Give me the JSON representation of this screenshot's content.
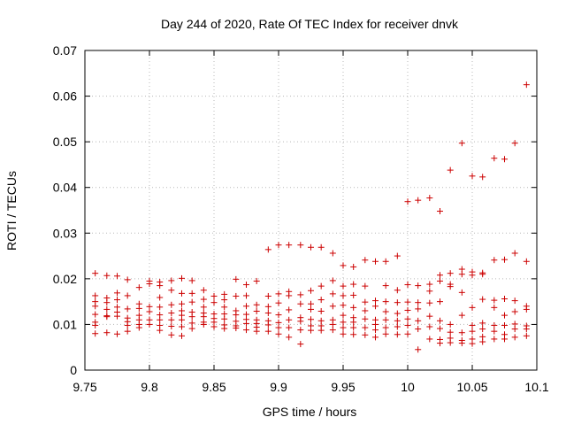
{
  "chart_data": {
    "type": "scatter",
    "title": "Day 244 of 2020, Rate Of TEC Index for receiver dnvk",
    "xlabel": "GPS time / hours",
    "ylabel": "ROTI / TECUs",
    "xlim": [
      9.75,
      10.1
    ],
    "ylim": [
      0,
      0.07
    ],
    "x_ticks": [
      9.75,
      9.8,
      9.85,
      9.9,
      9.95,
      10.0,
      10.05,
      10.1
    ],
    "x_tick_labels": [
      "9.75",
      "9.8",
      "9.85",
      "9.9",
      "9.95",
      "10",
      "10.05",
      "10.1"
    ],
    "y_ticks": [
      0,
      0.01,
      0.02,
      0.03,
      0.04,
      0.05,
      0.06,
      0.07
    ],
    "y_tick_labels": [
      "0",
      "0.01",
      "0.02",
      "0.03",
      "0.04",
      "0.05",
      "0.06",
      "0.07"
    ],
    "grid": true,
    "marker": "+",
    "marker_color": "#cc0000",
    "series": [
      {
        "name": "ROTI",
        "points": [
          [
            9.758,
            0.0212
          ],
          [
            9.758,
            0.0163
          ],
          [
            9.758,
            0.015
          ],
          [
            9.758,
            0.014
          ],
          [
            9.758,
            0.0122
          ],
          [
            9.758,
            0.0105
          ],
          [
            9.758,
            0.0098
          ],
          [
            9.758,
            0.008
          ],
          [
            9.767,
            0.0207
          ],
          [
            9.767,
            0.0158
          ],
          [
            9.767,
            0.0148
          ],
          [
            9.767,
            0.0133
          ],
          [
            9.767,
            0.0119
          ],
          [
            9.767,
            0.0117
          ],
          [
            9.767,
            0.0082
          ],
          [
            9.775,
            0.0206
          ],
          [
            9.775,
            0.0169
          ],
          [
            9.775,
            0.0154
          ],
          [
            9.775,
            0.0138
          ],
          [
            9.775,
            0.0127
          ],
          [
            9.775,
            0.0118
          ],
          [
            9.775,
            0.0079
          ],
          [
            9.783,
            0.0198
          ],
          [
            9.783,
            0.0163
          ],
          [
            9.783,
            0.0134
          ],
          [
            9.783,
            0.0114
          ],
          [
            9.783,
            0.0106
          ],
          [
            9.783,
            0.0098
          ],
          [
            9.783,
            0.0085
          ],
          [
            9.792,
            0.0181
          ],
          [
            9.792,
            0.0145
          ],
          [
            9.792,
            0.0135
          ],
          [
            9.792,
            0.012
          ],
          [
            9.792,
            0.011
          ],
          [
            9.792,
            0.01
          ],
          [
            9.792,
            0.0093
          ],
          [
            9.8,
            0.0195
          ],
          [
            9.8,
            0.0189
          ],
          [
            9.8,
            0.0139
          ],
          [
            9.8,
            0.0128
          ],
          [
            9.8,
            0.011
          ],
          [
            9.8,
            0.01
          ],
          [
            9.808,
            0.0193
          ],
          [
            9.808,
            0.0185
          ],
          [
            9.808,
            0.0159
          ],
          [
            9.808,
            0.0138
          ],
          [
            9.808,
            0.0121
          ],
          [
            9.808,
            0.011
          ],
          [
            9.808,
            0.0098
          ],
          [
            9.808,
            0.0087
          ],
          [
            9.817,
            0.0196
          ],
          [
            9.817,
            0.0175
          ],
          [
            9.817,
            0.0143
          ],
          [
            9.817,
            0.0125
          ],
          [
            9.817,
            0.011
          ],
          [
            9.817,
            0.0096
          ],
          [
            9.817,
            0.0077
          ],
          [
            9.825,
            0.0201
          ],
          [
            9.825,
            0.0168
          ],
          [
            9.825,
            0.0145
          ],
          [
            9.825,
            0.013
          ],
          [
            9.825,
            0.012
          ],
          [
            9.825,
            0.011
          ],
          [
            9.825,
            0.0095
          ],
          [
            9.825,
            0.0075
          ],
          [
            9.833,
            0.0196
          ],
          [
            9.833,
            0.0168
          ],
          [
            9.833,
            0.0149
          ],
          [
            9.833,
            0.0127
          ],
          [
            9.833,
            0.0117
          ],
          [
            9.833,
            0.0103
          ],
          [
            9.833,
            0.0091
          ],
          [
            9.842,
            0.0175
          ],
          [
            9.842,
            0.0155
          ],
          [
            9.842,
            0.0138
          ],
          [
            9.842,
            0.0125
          ],
          [
            9.842,
            0.0117
          ],
          [
            9.842,
            0.0105
          ],
          [
            9.842,
            0.01
          ],
          [
            9.85,
            0.0162
          ],
          [
            9.85,
            0.0148
          ],
          [
            9.85,
            0.0123
          ],
          [
            9.85,
            0.0113
          ],
          [
            9.85,
            0.0105
          ],
          [
            9.85,
            0.0095
          ],
          [
            9.858,
            0.0166
          ],
          [
            9.858,
            0.0154
          ],
          [
            9.858,
            0.0138
          ],
          [
            9.858,
            0.0123
          ],
          [
            9.858,
            0.0112
          ],
          [
            9.858,
            0.0099
          ],
          [
            9.858,
            0.0091
          ],
          [
            9.867,
            0.0199
          ],
          [
            9.867,
            0.0162
          ],
          [
            9.867,
            0.013
          ],
          [
            9.867,
            0.0121
          ],
          [
            9.867,
            0.0107
          ],
          [
            9.867,
            0.0097
          ],
          [
            9.867,
            0.0092
          ],
          [
            9.875,
            0.0187
          ],
          [
            9.875,
            0.0163
          ],
          [
            9.875,
            0.014
          ],
          [
            9.875,
            0.0122
          ],
          [
            9.875,
            0.0111
          ],
          [
            9.875,
            0.0102
          ],
          [
            9.875,
            0.0088
          ],
          [
            9.883,
            0.0195
          ],
          [
            9.883,
            0.0143
          ],
          [
            9.883,
            0.0129
          ],
          [
            9.883,
            0.011
          ],
          [
            9.883,
            0.0102
          ],
          [
            9.883,
            0.0094
          ],
          [
            9.883,
            0.0085
          ],
          [
            9.892,
            0.0264
          ],
          [
            9.892,
            0.0162
          ],
          [
            9.892,
            0.0139
          ],
          [
            9.892,
            0.0125
          ],
          [
            9.892,
            0.0108
          ],
          [
            9.892,
            0.0099
          ],
          [
            9.892,
            0.0085
          ],
          [
            9.9,
            0.0274
          ],
          [
            9.9,
            0.0167
          ],
          [
            9.9,
            0.0147
          ],
          [
            9.9,
            0.0121
          ],
          [
            9.9,
            0.0104
          ],
          [
            9.9,
            0.0093
          ],
          [
            9.9,
            0.0079
          ],
          [
            9.908,
            0.0274
          ],
          [
            9.908,
            0.0172
          ],
          [
            9.908,
            0.0163
          ],
          [
            9.908,
            0.0132
          ],
          [
            9.908,
            0.011
          ],
          [
            9.908,
            0.0093
          ],
          [
            9.908,
            0.0072
          ],
          [
            9.917,
            0.0274
          ],
          [
            9.917,
            0.0165
          ],
          [
            9.917,
            0.0145
          ],
          [
            9.917,
            0.0115
          ],
          [
            9.917,
            0.0107
          ],
          [
            9.917,
            0.0088
          ],
          [
            9.917,
            0.0057
          ],
          [
            9.925,
            0.0269
          ],
          [
            9.925,
            0.0174
          ],
          [
            9.925,
            0.0145
          ],
          [
            9.925,
            0.0133
          ],
          [
            9.925,
            0.0111
          ],
          [
            9.925,
            0.0097
          ],
          [
            9.925,
            0.0087
          ],
          [
            9.933,
            0.0269
          ],
          [
            9.933,
            0.0184
          ],
          [
            9.933,
            0.0154
          ],
          [
            9.933,
            0.0129
          ],
          [
            9.933,
            0.0108
          ],
          [
            9.933,
            0.0097
          ],
          [
            9.933,
            0.0087
          ],
          [
            9.942,
            0.0256
          ],
          [
            9.942,
            0.0196
          ],
          [
            9.942,
            0.0167
          ],
          [
            9.942,
            0.014
          ],
          [
            9.942,
            0.011
          ],
          [
            9.942,
            0.01
          ],
          [
            9.942,
            0.0088
          ],
          [
            9.95,
            0.0229
          ],
          [
            9.95,
            0.0184
          ],
          [
            9.95,
            0.0163
          ],
          [
            9.95,
            0.0142
          ],
          [
            9.95,
            0.012
          ],
          [
            9.95,
            0.0105
          ],
          [
            9.95,
            0.0093
          ],
          [
            9.95,
            0.0079
          ],
          [
            9.958,
            0.0226
          ],
          [
            9.958,
            0.0188
          ],
          [
            9.958,
            0.0164
          ],
          [
            9.958,
            0.0137
          ],
          [
            9.958,
            0.0115
          ],
          [
            9.958,
            0.0105
          ],
          [
            9.958,
            0.0093
          ],
          [
            9.958,
            0.0078
          ],
          [
            9.967,
            0.0241
          ],
          [
            9.967,
            0.0184
          ],
          [
            9.967,
            0.0149
          ],
          [
            9.967,
            0.013
          ],
          [
            9.967,
            0.0112
          ],
          [
            9.967,
            0.0093
          ],
          [
            9.967,
            0.0077
          ],
          [
            9.975,
            0.0238
          ],
          [
            9.975,
            0.0152
          ],
          [
            9.975,
            0.014
          ],
          [
            9.975,
            0.011
          ],
          [
            9.975,
            0.01
          ],
          [
            9.975,
            0.0088
          ],
          [
            9.975,
            0.0072
          ],
          [
            9.983,
            0.0238
          ],
          [
            9.983,
            0.0185
          ],
          [
            9.983,
            0.015
          ],
          [
            9.983,
            0.0128
          ],
          [
            9.983,
            0.011
          ],
          [
            9.983,
            0.0093
          ],
          [
            9.983,
            0.0079
          ],
          [
            9.992,
            0.025
          ],
          [
            9.992,
            0.0175
          ],
          [
            9.992,
            0.0148
          ],
          [
            9.992,
            0.0124
          ],
          [
            9.992,
            0.0108
          ],
          [
            9.992,
            0.0095
          ],
          [
            9.992,
            0.0078
          ],
          [
            10.0,
            0.0369
          ],
          [
            10.0,
            0.0187
          ],
          [
            10.0,
            0.0149
          ],
          [
            10.0,
            0.0131
          ],
          [
            10.0,
            0.0112
          ],
          [
            10.0,
            0.0098
          ],
          [
            10.0,
            0.0079
          ],
          [
            10.008,
            0.0372
          ],
          [
            10.008,
            0.0185
          ],
          [
            10.008,
            0.0148
          ],
          [
            10.008,
            0.0134
          ],
          [
            10.008,
            0.0108
          ],
          [
            10.008,
            0.009
          ],
          [
            10.008,
            0.0045
          ],
          [
            10.017,
            0.0377
          ],
          [
            10.017,
            0.0188
          ],
          [
            10.017,
            0.0173
          ],
          [
            10.017,
            0.0147
          ],
          [
            10.017,
            0.0118
          ],
          [
            10.017,
            0.0095
          ],
          [
            10.017,
            0.0068
          ],
          [
            10.025,
            0.0348
          ],
          [
            10.025,
            0.0208
          ],
          [
            10.025,
            0.0195
          ],
          [
            10.025,
            0.015
          ],
          [
            10.025,
            0.0108
          ],
          [
            10.025,
            0.0091
          ],
          [
            10.025,
            0.0067
          ],
          [
            10.025,
            0.0059
          ],
          [
            10.033,
            0.0438
          ],
          [
            10.033,
            0.0212
          ],
          [
            10.033,
            0.0188
          ],
          [
            10.033,
            0.0183
          ],
          [
            10.033,
            0.01
          ],
          [
            10.033,
            0.0083
          ],
          [
            10.033,
            0.007
          ],
          [
            10.033,
            0.006
          ],
          [
            10.042,
            0.0497
          ],
          [
            10.042,
            0.0221
          ],
          [
            10.042,
            0.021
          ],
          [
            10.042,
            0.017
          ],
          [
            10.042,
            0.012
          ],
          [
            10.042,
            0.0082
          ],
          [
            10.042,
            0.0065
          ],
          [
            10.042,
            0.0059
          ],
          [
            10.05,
            0.0425
          ],
          [
            10.05,
            0.0215
          ],
          [
            10.05,
            0.0208
          ],
          [
            10.05,
            0.0137
          ],
          [
            10.05,
            0.0098
          ],
          [
            10.05,
            0.0085
          ],
          [
            10.05,
            0.0068
          ],
          [
            10.05,
            0.0058
          ],
          [
            10.058,
            0.0423
          ],
          [
            10.058,
            0.0213
          ],
          [
            10.058,
            0.021
          ],
          [
            10.058,
            0.0155
          ],
          [
            10.058,
            0.0103
          ],
          [
            10.058,
            0.009
          ],
          [
            10.058,
            0.0073
          ],
          [
            10.058,
            0.0062
          ],
          [
            10.067,
            0.0464
          ],
          [
            10.067,
            0.0241
          ],
          [
            10.067,
            0.0153
          ],
          [
            10.067,
            0.0137
          ],
          [
            10.067,
            0.0098
          ],
          [
            10.067,
            0.0085
          ],
          [
            10.067,
            0.0068
          ],
          [
            10.075,
            0.0462
          ],
          [
            10.075,
            0.0242
          ],
          [
            10.075,
            0.0156
          ],
          [
            10.075,
            0.012
          ],
          [
            10.075,
            0.0098
          ],
          [
            10.075,
            0.0078
          ],
          [
            10.075,
            0.0068
          ],
          [
            10.083,
            0.0497
          ],
          [
            10.083,
            0.0256
          ],
          [
            10.083,
            0.0152
          ],
          [
            10.083,
            0.0128
          ],
          [
            10.083,
            0.0101
          ],
          [
            10.083,
            0.009
          ],
          [
            10.083,
            0.0072
          ],
          [
            10.092,
            0.0625
          ],
          [
            10.092,
            0.0238
          ],
          [
            10.092,
            0.014
          ],
          [
            10.092,
            0.0133
          ],
          [
            10.092,
            0.0097
          ],
          [
            10.092,
            0.009
          ],
          [
            10.092,
            0.0075
          ]
        ]
      }
    ]
  }
}
